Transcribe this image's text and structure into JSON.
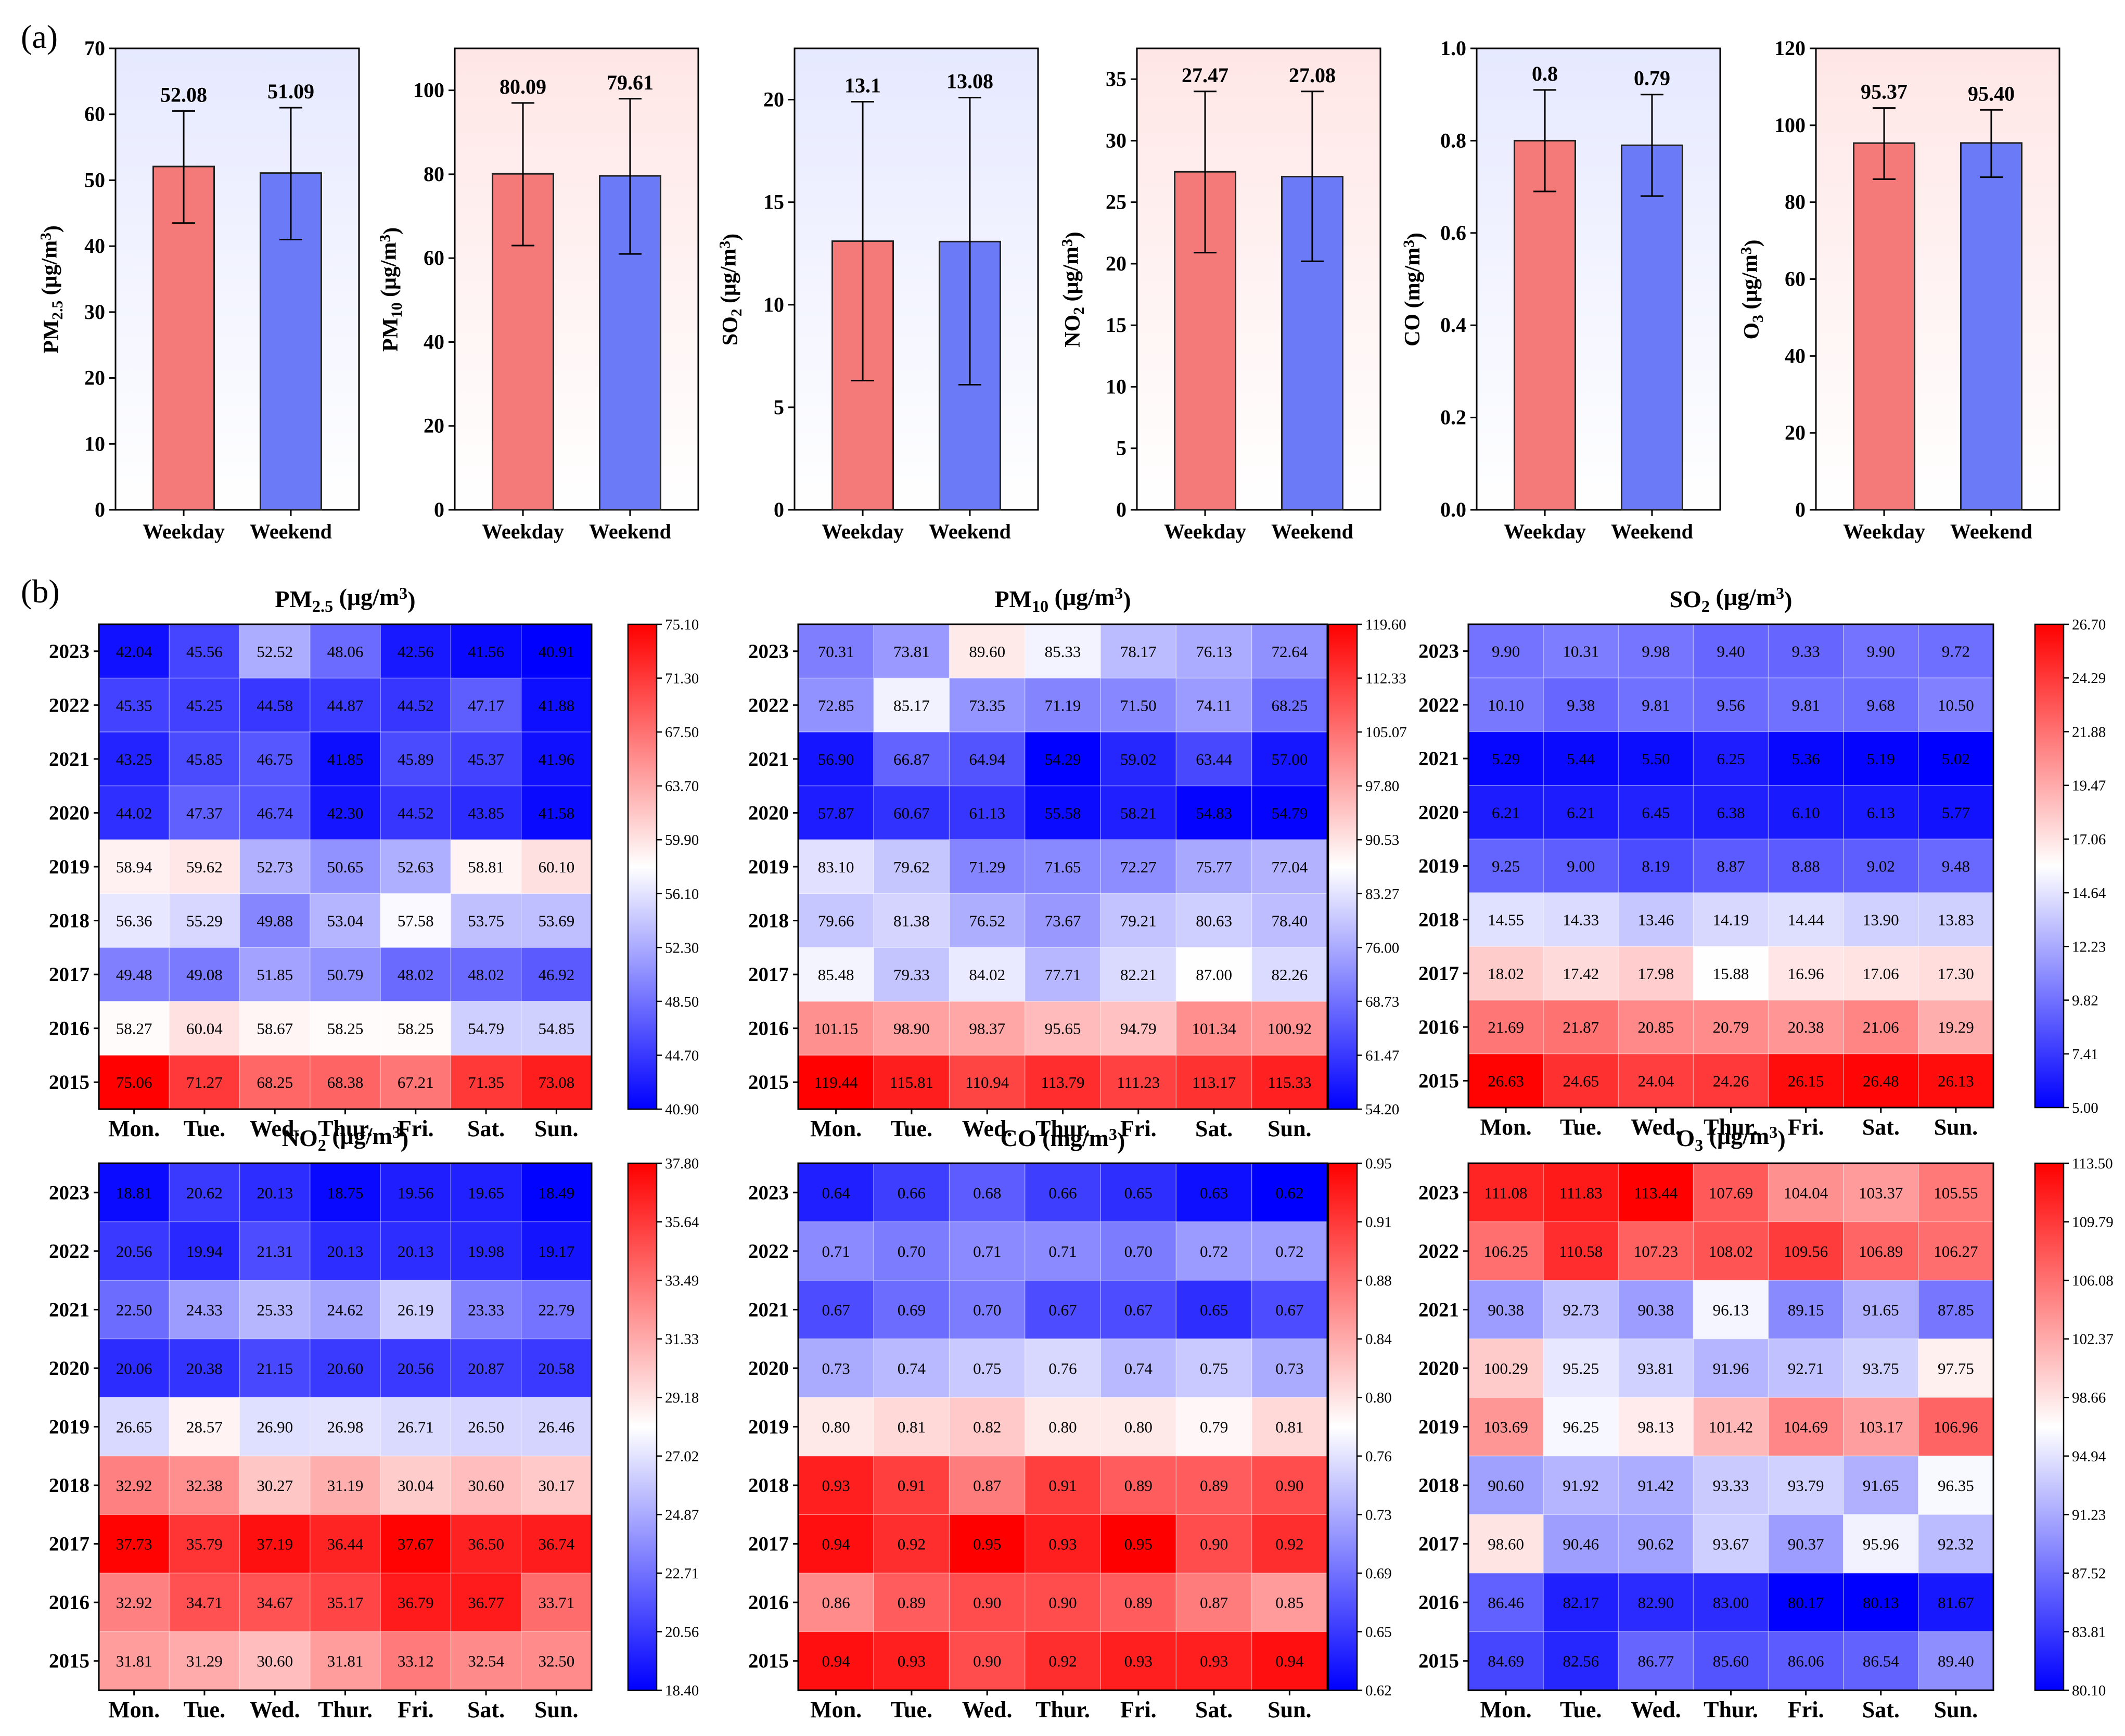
{
  "panel_labels": {
    "a": "(a)",
    "b": "(b)"
  },
  "chart_data": [
    {
      "type": "bar",
      "panel": "a",
      "ylabel": "PM<sub>2.5</sub> (μg/m<sup>3</sup>)",
      "ylim": [
        0,
        70
      ],
      "yticks": [
        "0",
        "10",
        "20",
        "30",
        "40",
        "50",
        "60",
        "70"
      ],
      "background": [
        "#e6e9ff",
        "#ffffff"
      ],
      "categories": [
        "Weekday",
        "Weekend"
      ],
      "values": [
        52.08,
        51.09
      ],
      "value_labels": [
        "52.08",
        "51.09"
      ],
      "error": [
        [
          43.5,
          60.5
        ],
        [
          41.0,
          61.0
        ]
      ],
      "colors": [
        "#f47a7a",
        "#6b7bf7"
      ]
    },
    {
      "type": "bar",
      "panel": "a",
      "ylabel": "PM<sub>10</sub> (μg/m<sup>3</sup>)",
      "ylim": [
        0,
        110
      ],
      "yticks": [
        "0",
        "20",
        "40",
        "60",
        "80",
        "100"
      ],
      "background": [
        "#ffe6e6",
        "#ffffff"
      ],
      "categories": [
        "Weekday",
        "Weekend"
      ],
      "values": [
        80.09,
        79.61
      ],
      "value_labels": [
        "80.09",
        "79.61"
      ],
      "error": [
        [
          63.0,
          97.0
        ],
        [
          61.0,
          98.0
        ]
      ],
      "colors": [
        "#f47a7a",
        "#6b7bf7"
      ]
    },
    {
      "type": "bar",
      "panel": "a",
      "ylabel": "SO<sub>2</sub> (μg/m<sup>3</sup>)",
      "ylim": [
        0,
        22.5
      ],
      "yticks": [
        "0",
        "5",
        "10",
        "15",
        "20"
      ],
      "background": [
        "#e6e9ff",
        "#ffffff"
      ],
      "categories": [
        "Weekday",
        "Weekend"
      ],
      "values": [
        13.1,
        13.08
      ],
      "value_labels": [
        "13.1",
        "13.08"
      ],
      "error": [
        [
          6.3,
          19.9
        ],
        [
          6.1,
          20.1
        ]
      ],
      "colors": [
        "#f47a7a",
        "#6b7bf7"
      ]
    },
    {
      "type": "bar",
      "panel": "a",
      "ylabel": "NO<sub>2</sub> (μg/m<sup>3</sup>)",
      "ylim": [
        0,
        37.5
      ],
      "yticks": [
        "0",
        "5",
        "10",
        "15",
        "20",
        "25",
        "30",
        "35"
      ],
      "background": [
        "#ffe6e6",
        "#ffffff"
      ],
      "categories": [
        "Weekday",
        "Weekend"
      ],
      "values": [
        27.47,
        27.08
      ],
      "value_labels": [
        "27.47",
        "27.08"
      ],
      "error": [
        [
          20.9,
          34.0
        ],
        [
          20.2,
          34.0
        ]
      ],
      "colors": [
        "#f47a7a",
        "#6b7bf7"
      ]
    },
    {
      "type": "bar",
      "panel": "a",
      "ylabel": "CO (mg/m<sup>3</sup>)",
      "ylim": [
        0,
        1.0
      ],
      "yticks": [
        "0.0",
        "0.2",
        "0.4",
        "0.6",
        "0.8",
        "1.0"
      ],
      "background": [
        "#e6e9ff",
        "#ffffff"
      ],
      "categories": [
        "Weekday",
        "Weekend"
      ],
      "values": [
        0.8,
        0.79
      ],
      "value_labels": [
        "0.8",
        "0.79"
      ],
      "error": [
        [
          0.69,
          0.91
        ],
        [
          0.68,
          0.9
        ]
      ],
      "colors": [
        "#f47a7a",
        "#6b7bf7"
      ]
    },
    {
      "type": "bar",
      "panel": "a",
      "ylabel": "O<sub>3</sub> (μg/m<sup>3</sup>)",
      "ylim": [
        0,
        120
      ],
      "yticks": [
        "0",
        "20",
        "40",
        "60",
        "80",
        "100",
        "120"
      ],
      "background": [
        "#ffe6e6",
        "#ffffff"
      ],
      "categories": [
        "Weekday",
        "Weekend"
      ],
      "values": [
        95.37,
        95.4
      ],
      "value_labels": [
        "95.37",
        "95.40"
      ],
      "error": [
        [
          86.0,
          104.5
        ],
        [
          86.5,
          104.0
        ]
      ],
      "colors": [
        "#f47a7a",
        "#6b7bf7"
      ]
    },
    {
      "type": "heatmap",
      "panel": "b",
      "title": "PM<sub>2.5</sub> (μg/m<sup>3</sup>)",
      "rows": [
        "2023",
        "2022",
        "2021",
        "2020",
        "2019",
        "2018",
        "2017",
        "2016",
        "2015"
      ],
      "cols": [
        "Mon.",
        "Tue.",
        "Wed.",
        "Thur.",
        "Fri.",
        "Sat.",
        "Sun."
      ],
      "range": [
        40.9,
        75.1
      ],
      "colorbar_ticks": [
        "75.10",
        "71.30",
        "67.50",
        "63.70",
        "59.90",
        "56.10",
        "52.30",
        "48.50",
        "44.70",
        "40.90"
      ],
      "values": [
        [
          "42.04",
          "45.56",
          "52.52",
          "48.06",
          "42.56",
          "41.56",
          "40.91"
        ],
        [
          "45.35",
          "45.25",
          "44.58",
          "44.87",
          "44.52",
          "47.17",
          "41.88"
        ],
        [
          "43.25",
          "45.85",
          "46.75",
          "41.85",
          "45.89",
          "45.37",
          "41.96"
        ],
        [
          "44.02",
          "47.37",
          "46.74",
          "42.30",
          "44.52",
          "43.85",
          "41.58"
        ],
        [
          "58.94",
          "59.62",
          "52.73",
          "50.65",
          "52.63",
          "58.81",
          "60.10"
        ],
        [
          "56.36",
          "55.29",
          "49.88",
          "53.04",
          "57.58",
          "53.75",
          "53.69"
        ],
        [
          "49.48",
          "49.08",
          "51.85",
          "50.79",
          "48.02",
          "48.02",
          "46.92"
        ],
        [
          "58.27",
          "60.04",
          "58.67",
          "58.25",
          "58.25",
          "54.79",
          "54.85"
        ],
        [
          "75.06",
          "71.27",
          "68.25",
          "68.38",
          "67.21",
          "71.35",
          "73.08"
        ]
      ]
    },
    {
      "type": "heatmap",
      "panel": "b",
      "title": "PM<sub>10</sub> (μg/m<sup>3</sup>)",
      "rows": [
        "2023",
        "2022",
        "2021",
        "2020",
        "2019",
        "2018",
        "2017",
        "2016",
        "2015"
      ],
      "cols": [
        "Mon.",
        "Tue.",
        "Wed.",
        "Thur.",
        "Fri.",
        "Sat.",
        "Sun."
      ],
      "range": [
        54.2,
        119.6
      ],
      "colorbar_ticks": [
        "119.60",
        "112.33",
        "105.07",
        "97.80",
        "90.53",
        "83.27",
        "76.00",
        "68.73",
        "61.47",
        "54.20"
      ],
      "values": [
        [
          "70.31",
          "73.81",
          "89.60",
          "85.33",
          "78.17",
          "76.13",
          "72.64"
        ],
        [
          "72.85",
          "85.17",
          "73.35",
          "71.19",
          "71.50",
          "74.11",
          "68.25"
        ],
        [
          "56.90",
          "66.87",
          "64.94",
          "54.29",
          "59.02",
          "63.44",
          "57.00"
        ],
        [
          "57.87",
          "60.67",
          "61.13",
          "55.58",
          "58.21",
          "54.83",
          "54.79"
        ],
        [
          "83.10",
          "79.62",
          "71.29",
          "71.65",
          "72.27",
          "75.77",
          "77.04"
        ],
        [
          "79.66",
          "81.38",
          "76.52",
          "73.67",
          "79.21",
          "80.63",
          "78.40"
        ],
        [
          "85.48",
          "79.33",
          "84.02",
          "77.71",
          "82.21",
          "87.00",
          "82.26"
        ],
        [
          "101.15",
          "98.90",
          "98.37",
          "95.65",
          "94.79",
          "101.34",
          "100.92"
        ],
        [
          "119.44",
          "115.81",
          "110.94",
          "113.79",
          "111.23",
          "113.17",
          "115.33"
        ]
      ]
    },
    {
      "type": "heatmap",
      "panel": "b",
      "title": "SO<sub>2</sub> (μg/m<sup>3</sup>)",
      "rows": [
        "2023",
        "2022",
        "2021",
        "2020",
        "2019",
        "2018",
        "2017",
        "2016",
        "2015"
      ],
      "cols": [
        "Mon.",
        "Tue.",
        "Wed.",
        "Thur.",
        "Fri.",
        "Sat.",
        "Sun."
      ],
      "range": [
        5.0,
        26.7
      ],
      "colorbar_ticks": [
        "26.70",
        "24.29",
        "21.88",
        "19.47",
        "17.06",
        "14.64",
        "12.23",
        "9.82",
        "7.41",
        "5.00"
      ],
      "values": [
        [
          "9.90",
          "10.31",
          "9.98",
          "9.40",
          "9.33",
          "9.90",
          "9.72"
        ],
        [
          "10.10",
          "9.38",
          "9.81",
          "9.56",
          "9.81",
          "9.68",
          "10.50"
        ],
        [
          "5.29",
          "5.44",
          "5.50",
          "6.25",
          "5.36",
          "5.19",
          "5.02"
        ],
        [
          "6.21",
          "6.21",
          "6.45",
          "6.38",
          "6.10",
          "6.13",
          "5.77"
        ],
        [
          "9.25",
          "9.00",
          "8.19",
          "8.87",
          "8.88",
          "9.02",
          "9.48"
        ],
        [
          "14.55",
          "14.33",
          "13.46",
          "14.19",
          "14.44",
          "13.90",
          "13.83"
        ],
        [
          "18.02",
          "17.42",
          "17.98",
          "15.88",
          "16.96",
          "17.06",
          "17.30"
        ],
        [
          "21.69",
          "21.87",
          "20.85",
          "20.79",
          "20.38",
          "21.06",
          "19.29"
        ],
        [
          "26.63",
          "24.65",
          "24.04",
          "24.26",
          "26.15",
          "26.48",
          "26.13"
        ]
      ]
    },
    {
      "type": "heatmap",
      "panel": "b",
      "title": "NO<sub>2</sub> (μg/m<sup>3</sup>)",
      "rows": [
        "2023",
        "2022",
        "2021",
        "2020",
        "2019",
        "2018",
        "2017",
        "2016",
        "2015"
      ],
      "cols": [
        "Mon.",
        "Tue.",
        "Wed.",
        "Thur.",
        "Fri.",
        "Sat.",
        "Sun."
      ],
      "range": [
        18.4,
        37.8
      ],
      "colorbar_ticks": [
        "37.80",
        "35.64",
        "33.49",
        "31.33",
        "29.18",
        "27.02",
        "24.87",
        "22.71",
        "20.56",
        "18.40"
      ],
      "values": [
        [
          "18.81",
          "20.62",
          "20.13",
          "18.75",
          "19.56",
          "19.65",
          "18.49"
        ],
        [
          "20.56",
          "19.94",
          "21.31",
          "20.13",
          "20.13",
          "19.98",
          "19.17"
        ],
        [
          "22.50",
          "24.33",
          "25.33",
          "24.62",
          "26.19",
          "23.33",
          "22.79"
        ],
        [
          "20.06",
          "20.38",
          "21.15",
          "20.60",
          "20.56",
          "20.87",
          "20.58"
        ],
        [
          "26.65",
          "28.57",
          "26.90",
          "26.98",
          "26.71",
          "26.50",
          "26.46"
        ],
        [
          "32.92",
          "32.38",
          "30.27",
          "31.19",
          "30.04",
          "30.60",
          "30.17"
        ],
        [
          "37.73",
          "35.79",
          "37.19",
          "36.44",
          "37.67",
          "36.50",
          "36.74"
        ],
        [
          "32.92",
          "34.71",
          "34.67",
          "35.17",
          "36.79",
          "36.77",
          "33.71"
        ],
        [
          "31.81",
          "31.29",
          "30.60",
          "31.81",
          "33.12",
          "32.54",
          "32.50"
        ]
      ]
    },
    {
      "type": "heatmap",
      "panel": "b",
      "title": "CO (mg/m<sup>3</sup>)",
      "rows": [
        "2023",
        "2022",
        "2021",
        "2020",
        "2019",
        "2018",
        "2017",
        "2016",
        "2015"
      ],
      "cols": [
        "Mon.",
        "Tue.",
        "Wed.",
        "Thur.",
        "Fri.",
        "Sat.",
        "Sun."
      ],
      "range": [
        0.62,
        0.95
      ],
      "colorbar_ticks": [
        "0.95",
        "0.91",
        "0.88",
        "0.84",
        "0.80",
        "0.76",
        "0.73",
        "0.69",
        "0.65",
        "0.62"
      ],
      "values": [
        [
          "0.64",
          "0.66",
          "0.68",
          "0.66",
          "0.65",
          "0.63",
          "0.62"
        ],
        [
          "0.71",
          "0.70",
          "0.71",
          "0.71",
          "0.70",
          "0.72",
          "0.72"
        ],
        [
          "0.67",
          "0.69",
          "0.70",
          "0.67",
          "0.67",
          "0.65",
          "0.67"
        ],
        [
          "0.73",
          "0.74",
          "0.75",
          "0.76",
          "0.74",
          "0.75",
          "0.73"
        ],
        [
          "0.80",
          "0.81",
          "0.82",
          "0.80",
          "0.80",
          "0.79",
          "0.81"
        ],
        [
          "0.93",
          "0.91",
          "0.87",
          "0.91",
          "0.89",
          "0.89",
          "0.90"
        ],
        [
          "0.94",
          "0.92",
          "0.95",
          "0.93",
          "0.95",
          "0.90",
          "0.92"
        ],
        [
          "0.86",
          "0.89",
          "0.90",
          "0.90",
          "0.89",
          "0.87",
          "0.85"
        ],
        [
          "0.94",
          "0.93",
          "0.90",
          "0.92",
          "0.93",
          "0.93",
          "0.94"
        ]
      ]
    },
    {
      "type": "heatmap",
      "panel": "b",
      "title": "O<sub>3</sub> (μg/m<sup>3</sup>)",
      "rows": [
        "2023",
        "2022",
        "2021",
        "2020",
        "2019",
        "2018",
        "2017",
        "2016",
        "2015"
      ],
      "cols": [
        "Mon.",
        "Tue.",
        "Wed.",
        "Thur.",
        "Fri.",
        "Sat.",
        "Sun."
      ],
      "range": [
        80.1,
        113.5
      ],
      "colorbar_ticks": [
        "113.50",
        "109.79",
        "106.08",
        "102.37",
        "98.66",
        "94.94",
        "91.23",
        "87.52",
        "83.81",
        "80.10"
      ],
      "values": [
        [
          "111.08",
          "111.83",
          "113.44",
          "107.69",
          "104.04",
          "103.37",
          "105.55"
        ],
        [
          "106.25",
          "110.58",
          "107.23",
          "108.02",
          "109.56",
          "106.89",
          "106.27"
        ],
        [
          "90.38",
          "92.73",
          "90.38",
          "96.13",
          "89.15",
          "91.65",
          "87.85"
        ],
        [
          "100.29",
          "95.25",
          "93.81",
          "91.96",
          "92.71",
          "93.75",
          "97.75"
        ],
        [
          "103.69",
          "96.25",
          "98.13",
          "101.42",
          "104.69",
          "103.17",
          "106.96"
        ],
        [
          "90.60",
          "91.92",
          "91.42",
          "93.33",
          "93.79",
          "91.65",
          "96.35"
        ],
        [
          "98.60",
          "90.46",
          "90.62",
          "93.67",
          "90.37",
          "95.96",
          "92.32"
        ],
        [
          "86.46",
          "82.17",
          "82.90",
          "83.00",
          "80.17",
          "80.13",
          "81.67"
        ],
        [
          "84.69",
          "82.56",
          "86.77",
          "85.60",
          "86.06",
          "86.54",
          "89.40"
        ]
      ]
    }
  ]
}
